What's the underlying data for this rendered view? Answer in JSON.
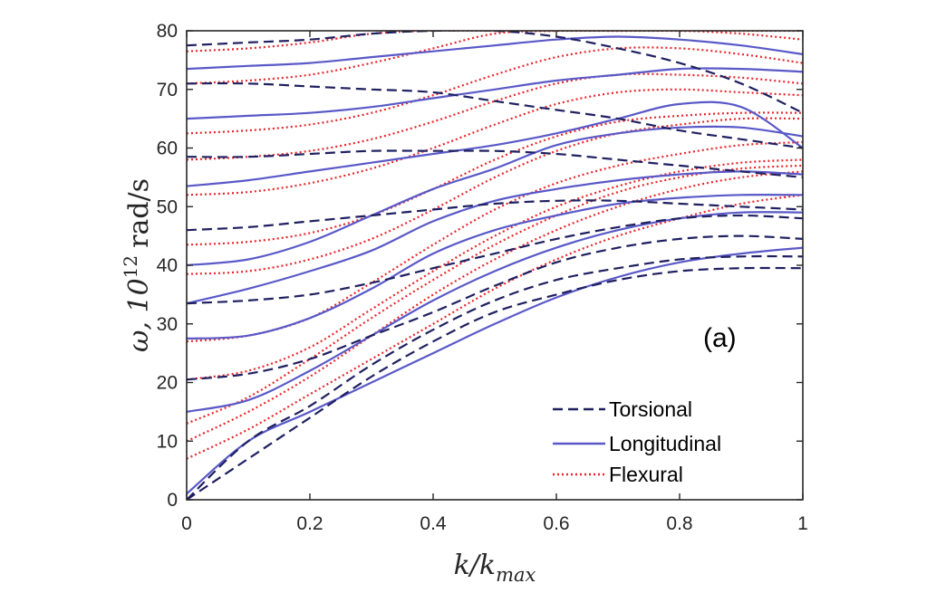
{
  "chart_data": {
    "type": "line",
    "panel_label": "(a)",
    "xlabel": "k/k",
    "xlabel_sub": "max",
    "ylabel_symbol": "ω, 10",
    "ylabel_exp": "12",
    "ylabel_unit": "rad/s",
    "xlim": [
      0,
      1
    ],
    "ylim": [
      0,
      80
    ],
    "x_ticks": [
      0,
      0.2,
      0.4,
      0.6,
      0.8,
      1
    ],
    "x_tick_labels": [
      "0",
      "0.2",
      "0.4",
      "0.6",
      "0.8",
      "1"
    ],
    "y_ticks": [
      0,
      10,
      20,
      30,
      40,
      50,
      60,
      70,
      80
    ],
    "y_tick_labels": [
      "0",
      "10",
      "20",
      "30",
      "40",
      "50",
      "60",
      "70",
      "80"
    ],
    "grid": false,
    "legend_position": "bottom-right",
    "legend": [
      {
        "label": "Torsional",
        "style": "dashed",
        "color": "#1f2060"
      },
      {
        "label": "Longitudinal",
        "style": "solid",
        "color": "#5959c8"
      },
      {
        "label": "Flexural",
        "style": "dotted",
        "color": "#e8262b"
      }
    ],
    "x": [
      0,
      0.1,
      0.2,
      0.3,
      0.4,
      0.5,
      0.6,
      0.7,
      0.8,
      0.9,
      1.0
    ],
    "series": [
      {
        "name": "Torsional",
        "style": "dashed",
        "color": "#1f2060",
        "branches": [
          [
            0,
            7,
            14,
            21,
            27,
            32,
            35,
            37.5,
            39,
            39.5,
            39.5
          ],
          [
            0,
            10,
            16,
            23,
            29,
            34,
            37.5,
            39.5,
            41,
            41.5,
            41.5
          ],
          [
            20.5,
            21.5,
            24,
            28,
            32,
            36.5,
            40.5,
            43,
            44.5,
            45,
            44.5
          ],
          [
            33.5,
            34,
            35,
            37,
            39.5,
            42,
            44.5,
            46.5,
            48,
            48.5,
            48
          ],
          [
            46,
            46.5,
            47.5,
            48.5,
            49.5,
            50.5,
            51,
            51,
            50.5,
            50,
            49.5
          ],
          [
            58.5,
            58.5,
            59,
            59.5,
            59.5,
            59.5,
            59,
            58,
            57,
            56,
            55
          ],
          [
            71,
            71,
            70.5,
            70,
            69.5,
            68,
            66.5,
            65,
            63,
            61.5,
            60
          ],
          [
            77.5,
            78,
            78.5,
            79.5,
            80,
            80,
            79,
            77,
            74.5,
            71,
            66
          ]
        ]
      },
      {
        "name": "Longitudinal",
        "style": "solid",
        "color": "#5959c8",
        "branches": [
          [
            1,
            10,
            15,
            20,
            25,
            30,
            34.5,
            38,
            40.5,
            42,
            43
          ],
          [
            15,
            17,
            22,
            28,
            34,
            39,
            43,
            46,
            48,
            49,
            49
          ],
          [
            27.5,
            28,
            31,
            36,
            42,
            46,
            48.5,
            50.5,
            51.5,
            52,
            52
          ],
          [
            33.5,
            36,
            39,
            42.5,
            47.5,
            51,
            53,
            54.5,
            55.5,
            56,
            55.5
          ],
          [
            40,
            41,
            44,
            48.5,
            53,
            56.5,
            60.5,
            62.5,
            63.5,
            63.5,
            62
          ],
          [
            53.5,
            54.5,
            56,
            57.5,
            59,
            60.5,
            62.5,
            65,
            67.5,
            67,
            60
          ],
          [
            65,
            65.5,
            66,
            67,
            68.5,
            70,
            71.5,
            72.5,
            73.5,
            73.5,
            73
          ],
          [
            73.5,
            74,
            74.5,
            75.5,
            76.5,
            77.5,
            78.5,
            79,
            78.5,
            77.5,
            76
          ]
        ]
      },
      {
        "name": "Flexural",
        "style": "dotted",
        "color": "#e8262b",
        "branches": [
          [
            7,
            12,
            18,
            24,
            30,
            36,
            41,
            45,
            48,
            50.5,
            52
          ],
          [
            10,
            15,
            21,
            28,
            35,
            41,
            46,
            50,
            53,
            55,
            56
          ],
          [
            13,
            17.5,
            24,
            31,
            37.5,
            43.5,
            48.5,
            52.5,
            55,
            56.5,
            57
          ],
          [
            20.5,
            22,
            26,
            32.5,
            39,
            45,
            50,
            53.5,
            56,
            57.5,
            58
          ],
          [
            27,
            28,
            31,
            37,
            43.5,
            49.5,
            54,
            57,
            59,
            60.5,
            61
          ],
          [
            38.5,
            39,
            41,
            44.5,
            49.5,
            55,
            59.5,
            62.5,
            64,
            65,
            65
          ],
          [
            43.5,
            44,
            45.5,
            48.5,
            53,
            58,
            62,
            64.5,
            65.5,
            66,
            66
          ],
          [
            52,
            52.5,
            54,
            56.5,
            60,
            64,
            67.5,
            69.5,
            70,
            69.5,
            69
          ],
          [
            58,
            58.5,
            59.5,
            61.5,
            64.5,
            68,
            71,
            72.5,
            72.5,
            72,
            71
          ],
          [
            62.5,
            63,
            64,
            66,
            69,
            72.5,
            75.5,
            77,
            77,
            76,
            74.5
          ],
          [
            71,
            71.5,
            72.5,
            74.5,
            77,
            79.5,
            80,
            80,
            80,
            79.5,
            78.5
          ],
          [
            76.5,
            77,
            78,
            79.5,
            80,
            80,
            80,
            80,
            80,
            80,
            80
          ]
        ]
      }
    ]
  }
}
